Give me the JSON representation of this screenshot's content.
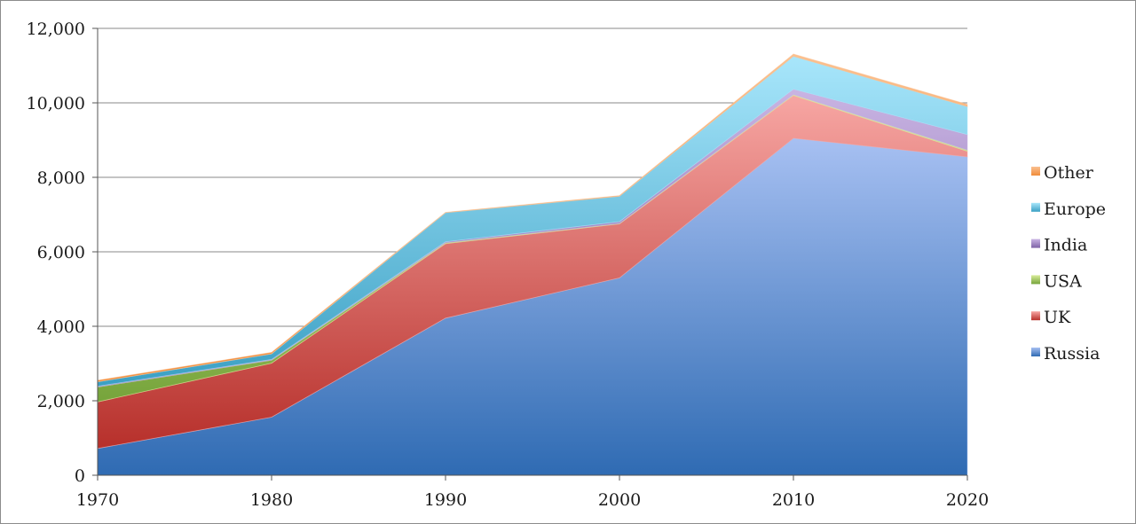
{
  "chart_data": {
    "type": "area",
    "stacked": true,
    "x": [
      1970,
      1980,
      1990,
      2000,
      2010,
      2020
    ],
    "x_tick_labels": [
      "1970",
      "1980",
      "1990",
      "2000",
      "2010",
      "2020"
    ],
    "y_tick_labels": [
      "0",
      "2,000",
      "4,000",
      "6,000",
      "8,000",
      "10,000",
      "12,000"
    ],
    "ylim": [
      0,
      12000
    ],
    "grid": "horizontal",
    "legend_placement": "right",
    "series": [
      {
        "name": "Russia",
        "values": [
          720,
          1560,
          4220,
          5300,
          9050,
          8550
        ],
        "color_top": "#a7c0f2",
        "color_bottom": "#2f6bb3"
      },
      {
        "name": "UK",
        "values": [
          1250,
          1450,
          2000,
          1450,
          1150,
          150
        ],
        "color_top": "#f7a6a3",
        "color_bottom": "#b7302b"
      },
      {
        "name": "USA",
        "values": [
          400,
          80,
          20,
          10,
          20,
          30
        ],
        "color_top": "#d9ec9a",
        "color_bottom": "#76a43b"
      },
      {
        "name": "India",
        "values": [
          20,
          20,
          30,
          50,
          150,
          420
        ],
        "color_top": "#c9b4e3",
        "color_bottom": "#7e62a6"
      },
      {
        "name": "Europe",
        "values": [
          120,
          150,
          780,
          680,
          880,
          750
        ],
        "color_top": "#a8e6fb",
        "color_bottom": "#3ba0c4"
      },
      {
        "name": "Other",
        "values": [
          40,
          40,
          10,
          20,
          60,
          60
        ],
        "color_top": "#fbc08f",
        "color_bottom": "#f08c3a"
      }
    ]
  }
}
